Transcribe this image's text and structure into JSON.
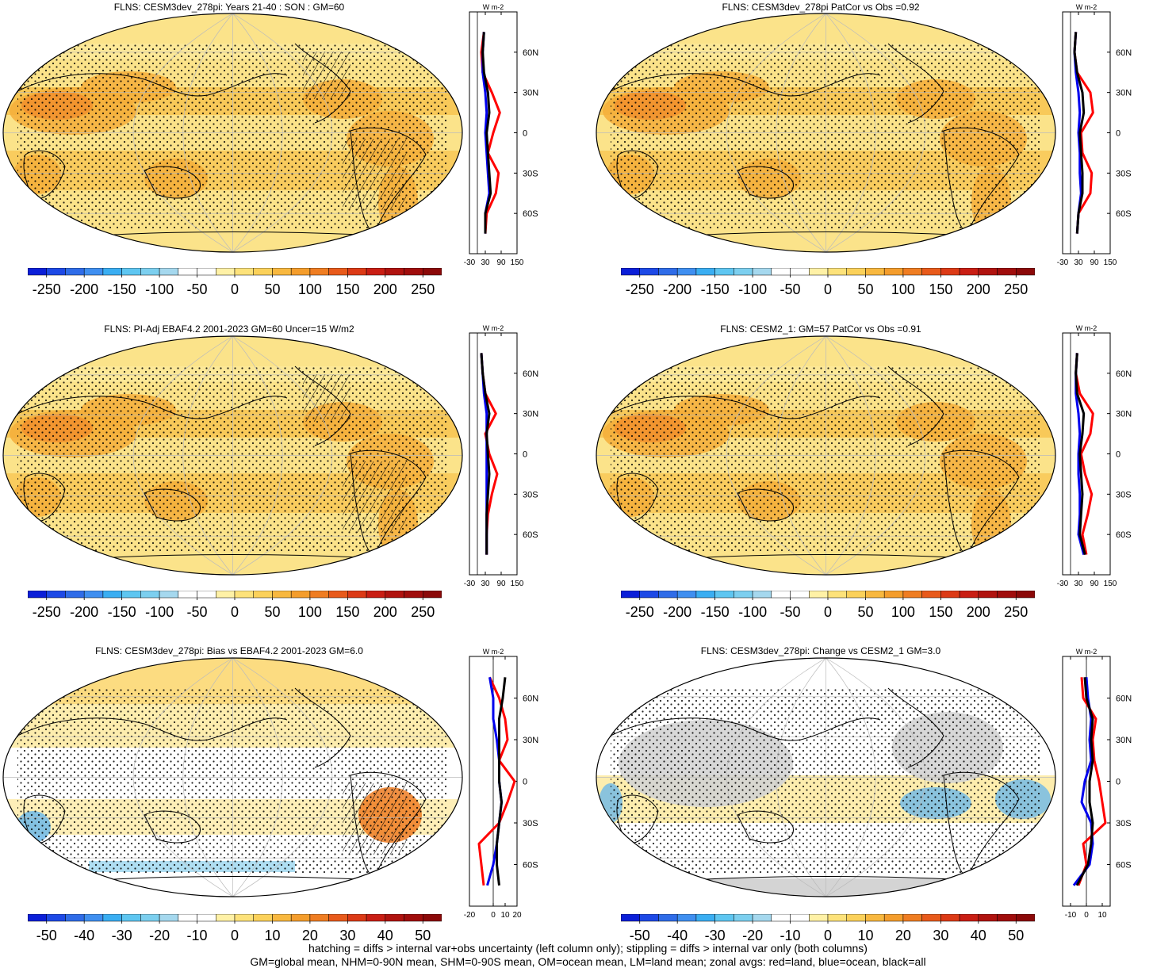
{
  "colors": {
    "ocean_base": "#fbe38a",
    "land_warm": "#f5ae3a",
    "hot": "#ef7d22",
    "cold": "#6db8e8",
    "gray": "#d4d4d4",
    "land_line": "#ffffff",
    "series_land": "#ff0000",
    "series_ocean": "#0000ee",
    "series_all": "#000000"
  },
  "footer": {
    "line1": "hatching = diffs > internal var+obs uncertainty (left column only); stippling = diffs > internal var only (both columns)",
    "line2": "GM=global mean, NHM=0-90N mean, SHM=0-90S mean, OM=ocean mean, LM=land mean; zonal avgs: red=land, blue=ocean, black=all"
  },
  "chart_data": [
    {
      "type": "heatmap",
      "title": "FLNS: CESM3dev_278pi: Years 21-40 : SON : GM=60",
      "colorbar_ticks": [
        "-250",
        "-200",
        "-150",
        "-100",
        "-50",
        "0",
        "50",
        "100",
        "150",
        "200",
        "250"
      ],
      "colorbar_range": [
        -275,
        275
      ],
      "zonal": {
        "unit": "W m-2",
        "xticks": [
          "-30",
          "30",
          "90",
          "150"
        ],
        "xlim": [
          -30,
          150
        ],
        "lat_ticks": [
          "60N",
          "30N",
          "0",
          "30S",
          "60S"
        ],
        "lat_values": [
          -75,
          -60,
          -45,
          -30,
          -15,
          0,
          15,
          30,
          45,
          60,
          75
        ],
        "series": [
          {
            "name": "land",
            "values": [
              30,
              35,
              70,
              80,
              40,
              60,
              85,
              55,
              20,
              15,
              25
            ]
          },
          {
            "name": "ocean",
            "values": [
              30,
              30,
              45,
              40,
              35,
              30,
              35,
              30,
              20,
              20,
              25
            ]
          },
          {
            "name": "all",
            "values": [
              30,
              30,
              50,
              45,
              40,
              35,
              45,
              40,
              25,
              20,
              25
            ]
          }
        ]
      }
    },
    {
      "type": "heatmap",
      "title": "FLNS: CESM3dev_278pi PatCor vs Obs =0.92",
      "colorbar_ticks": [
        "-250",
        "-200",
        "-150",
        "-100",
        "-50",
        "0",
        "50",
        "100",
        "150",
        "200",
        "250"
      ],
      "colorbar_range": [
        -275,
        275
      ],
      "zonal": {
        "unit": "W m-2",
        "xticks": [
          "-30",
          "30",
          "90",
          "150"
        ],
        "xlim": [
          -30,
          150
        ],
        "lat_ticks": [
          "60N",
          "30N",
          "0",
          "30S",
          "60S"
        ],
        "lat_values": [
          -75,
          -60,
          -45,
          -30,
          -15,
          0,
          15,
          30,
          45,
          60,
          75
        ],
        "series": [
          {
            "name": "land",
            "values": [
              25,
              30,
              75,
              80,
              45,
              40,
              85,
              75,
              25,
              15,
              20
            ]
          },
          {
            "name": "ocean",
            "values": [
              25,
              30,
              40,
              35,
              35,
              30,
              35,
              30,
              20,
              15,
              20
            ]
          },
          {
            "name": "all",
            "values": [
              25,
              30,
              45,
              45,
              40,
              35,
              50,
              45,
              25,
              15,
              20
            ]
          }
        ]
      }
    },
    {
      "type": "heatmap",
      "title": "FLNS: PI-Adj EBAF4.2 2001-2023 GM=60 Uncer=15 W/m2",
      "colorbar_ticks": [
        "-250",
        "-200",
        "-150",
        "-100",
        "-50",
        "0",
        "50",
        "100",
        "150",
        "200",
        "250"
      ],
      "colorbar_range": [
        -275,
        275
      ],
      "zonal": {
        "unit": "W m-2",
        "xticks": [
          "-30",
          "30",
          "90",
          "150"
        ],
        "xlim": [
          -30,
          150
        ],
        "lat_ticks": [
          "60N",
          "30N",
          "0",
          "30S",
          "60S"
        ],
        "lat_values": [
          -75,
          -60,
          -45,
          -30,
          -15,
          0,
          15,
          30,
          45,
          60,
          75
        ],
        "series": [
          {
            "name": "land",
            "values": [
              35,
              35,
              40,
              55,
              75,
              45,
              30,
              70,
              30,
              20,
              15
            ]
          },
          {
            "name": "ocean",
            "values": [
              35,
              35,
              35,
              35,
              35,
              35,
              35,
              35,
              25,
              20,
              15
            ]
          },
          {
            "name": "all",
            "values": [
              35,
              35,
              35,
              40,
              45,
              40,
              35,
              45,
              30,
              20,
              15
            ]
          }
        ]
      }
    },
    {
      "type": "heatmap",
      "title": "FLNS: CESM2_1: GM=57 PatCor vs Obs =0.91",
      "colorbar_ticks": [
        "-250",
        "-200",
        "-150",
        "-100",
        "-50",
        "0",
        "50",
        "100",
        "150",
        "200",
        "250"
      ],
      "colorbar_range": [
        -275,
        275
      ],
      "zonal": {
        "unit": "W m-2",
        "xticks": [
          "-30",
          "30",
          "90",
          "150"
        ],
        "xlim": [
          -30,
          150
        ],
        "lat_ticks": [
          "60N",
          "30N",
          "0",
          "30S",
          "60S"
        ],
        "lat_values": [
          -75,
          -60,
          -45,
          -30,
          -15,
          0,
          15,
          30,
          45,
          60,
          75
        ],
        "series": [
          {
            "name": "land",
            "values": [
              60,
              45,
              65,
              80,
              55,
              40,
              75,
              85,
              35,
              20,
              25
            ]
          },
          {
            "name": "ocean",
            "values": [
              50,
              30,
              35,
              35,
              30,
              30,
              35,
              30,
              20,
              20,
              25
            ]
          },
          {
            "name": "all",
            "values": [
              55,
              35,
              40,
              45,
              40,
              35,
              45,
              50,
              25,
              20,
              25
            ]
          }
        ]
      }
    },
    {
      "type": "heatmap",
      "title": "FLNS: CESM3dev_278pi: Bias vs EBAF4.2 2001-2023  GM=6.0",
      "colorbar_ticks": [
        "-50",
        "-40",
        "-30",
        "-20",
        "-10",
        "0",
        "10",
        "20",
        "30",
        "40",
        "50"
      ],
      "colorbar_range": [
        -55,
        55
      ],
      "zonal": {
        "unit": "W m-2",
        "xticks": [
          "-20",
          "0",
          "10",
          "20"
        ],
        "xlim": [
          -20,
          20
        ],
        "lat_ticks": [
          "60N",
          "30N",
          "0",
          "30S",
          "60S"
        ],
        "lat_values": [
          -75,
          -60,
          -45,
          -30,
          -15,
          0,
          15,
          30,
          45,
          60,
          75
        ],
        "series": [
          {
            "name": "land",
            "values": [
              -8,
              -10,
              -12,
              5,
              12,
              18,
              5,
              12,
              10,
              5,
              -3
            ]
          },
          {
            "name": "ocean",
            "values": [
              -5,
              0,
              3,
              5,
              7,
              5,
              5,
              3,
              0,
              0,
              -3
            ]
          },
          {
            "name": "all",
            "values": [
              5,
              3,
              3,
              5,
              7,
              5,
              5,
              5,
              5,
              8,
              10
            ]
          }
        ]
      }
    },
    {
      "type": "heatmap",
      "title": "FLNS: CESM3dev_278pi: Change vs CESM2_1 GM=3.0",
      "colorbar_ticks": [
        "-50",
        "-40",
        "-30",
        "-20",
        "-10",
        "0",
        "10",
        "20",
        "30",
        "40",
        "50"
      ],
      "colorbar_range": [
        -55,
        55
      ],
      "zonal": {
        "unit": "W m-2",
        "xticks": [
          "-10",
          "0",
          "10"
        ],
        "xlim": [
          -15,
          15
        ],
        "lat_ticks": [
          "60N",
          "30N",
          "0",
          "30S",
          "60S"
        ],
        "lat_values": [
          -75,
          -60,
          -45,
          -30,
          -15,
          0,
          15,
          30,
          45,
          60,
          75
        ],
        "series": [
          {
            "name": "land",
            "values": [
              -5,
              0,
              -2,
              12,
              10,
              8,
              5,
              4,
              6,
              -2,
              -3
            ]
          },
          {
            "name": "ocean",
            "values": [
              -8,
              2,
              4,
              3,
              -3,
              -1,
              3,
              2,
              3,
              1,
              0
            ]
          },
          {
            "name": "all",
            "values": [
              -6,
              1,
              3,
              4,
              2,
              2,
              4,
              3,
              4,
              0,
              -1
            ]
          }
        ]
      }
    }
  ]
}
